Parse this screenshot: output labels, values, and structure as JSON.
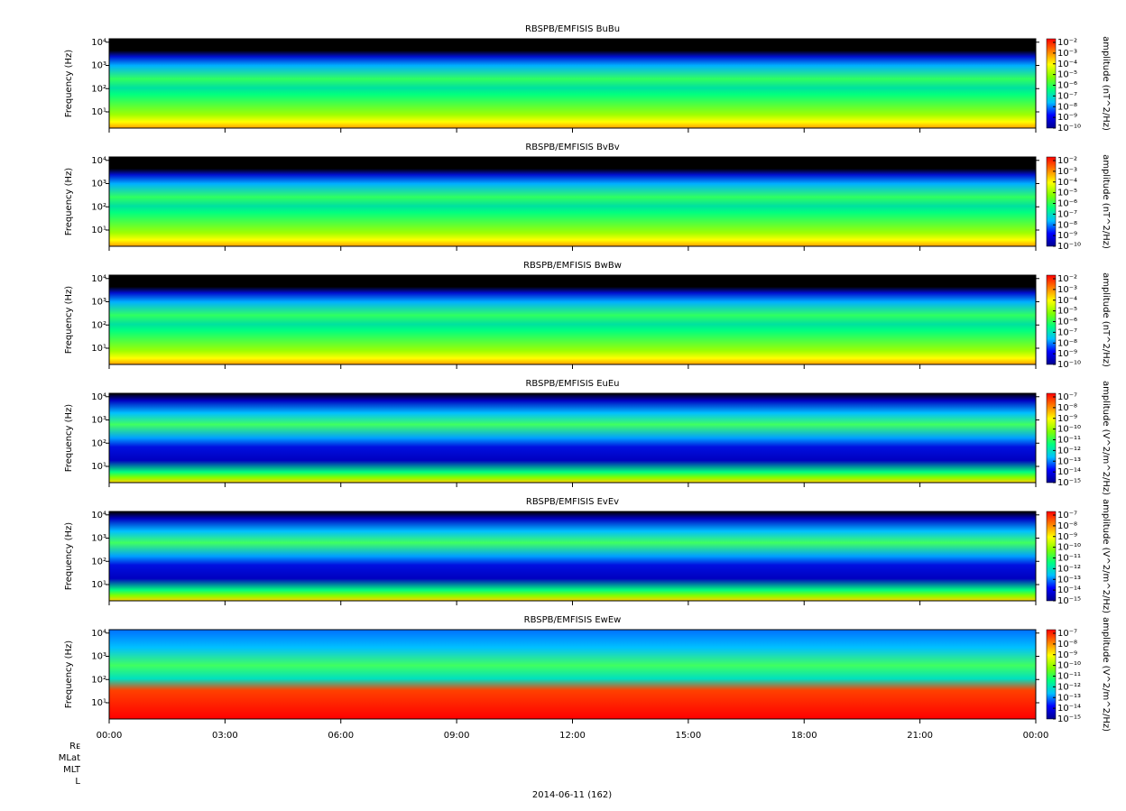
{
  "chart_data": [
    {
      "type": "spectrogram",
      "title": "RBSPB/EMFISIS  BuBu",
      "ylabel": "Frequency (Hz)",
      "log_y": true,
      "ylim": [
        2,
        14000
      ],
      "yticks": [
        {
          "value": 10,
          "label": "10¹"
        },
        {
          "value": 100,
          "label": "10²"
        },
        {
          "value": 1000,
          "label": "10³"
        },
        {
          "value": 10000,
          "label": "10⁴"
        }
      ],
      "zlabel": "amplitude (nT^2/Hz)",
      "zlim": [
        1e-10,
        0.01
      ],
      "zticks": [
        {
          "value": 0.01,
          "label": "10⁻²"
        },
        {
          "value": 0.001,
          "label": "10⁻³"
        },
        {
          "value": 0.0001,
          "label": "10⁻⁴"
        },
        {
          "value": 1e-05,
          "label": "10⁻⁵"
        },
        {
          "value": 1e-06,
          "label": "10⁻⁶"
        },
        {
          "value": 1e-07,
          "label": "10⁻⁷"
        },
        {
          "value": 1e-08,
          "label": "10⁻⁸"
        },
        {
          "value": 1e-09,
          "label": "10⁻⁹"
        },
        {
          "value": 1e-10,
          "label": "10⁻¹⁰"
        }
      ]
    },
    {
      "type": "spectrogram",
      "title": "RBSPB/EMFISIS  BvBv",
      "ylabel": "Frequency (Hz)",
      "log_y": true,
      "ylim": [
        2,
        14000
      ],
      "yticks": [
        {
          "value": 10,
          "label": "10¹"
        },
        {
          "value": 100,
          "label": "10²"
        },
        {
          "value": 1000,
          "label": "10³"
        },
        {
          "value": 10000,
          "label": "10⁴"
        }
      ],
      "zlabel": "amplitude (nT^2/Hz)",
      "zlim": [
        1e-10,
        0.01
      ],
      "zticks": [
        {
          "value": 0.01,
          "label": "10⁻²"
        },
        {
          "value": 0.001,
          "label": "10⁻³"
        },
        {
          "value": 0.0001,
          "label": "10⁻⁴"
        },
        {
          "value": 1e-05,
          "label": "10⁻⁵"
        },
        {
          "value": 1e-06,
          "label": "10⁻⁶"
        },
        {
          "value": 1e-07,
          "label": "10⁻⁷"
        },
        {
          "value": 1e-08,
          "label": "10⁻⁸"
        },
        {
          "value": 1e-09,
          "label": "10⁻⁹"
        },
        {
          "value": 1e-10,
          "label": "10⁻¹⁰"
        }
      ]
    },
    {
      "type": "spectrogram",
      "title": "RBSPB/EMFISIS  BwBw",
      "ylabel": "Frequency (Hz)",
      "log_y": true,
      "ylim": [
        2,
        14000
      ],
      "yticks": [
        {
          "value": 10,
          "label": "10¹"
        },
        {
          "value": 100,
          "label": "10²"
        },
        {
          "value": 1000,
          "label": "10³"
        },
        {
          "value": 10000,
          "label": "10⁴"
        }
      ],
      "zlabel": "amplitude (nT^2/Hz)",
      "zlim": [
        1e-10,
        0.01
      ],
      "zticks": [
        {
          "value": 0.01,
          "label": "10⁻²"
        },
        {
          "value": 0.001,
          "label": "10⁻³"
        },
        {
          "value": 0.0001,
          "label": "10⁻⁴"
        },
        {
          "value": 1e-05,
          "label": "10⁻⁵"
        },
        {
          "value": 1e-06,
          "label": "10⁻⁶"
        },
        {
          "value": 1e-07,
          "label": "10⁻⁷"
        },
        {
          "value": 1e-08,
          "label": "10⁻⁸"
        },
        {
          "value": 1e-09,
          "label": "10⁻⁹"
        },
        {
          "value": 1e-10,
          "label": "10⁻¹⁰"
        }
      ]
    },
    {
      "type": "spectrogram",
      "title": "RBSPB/EMFISIS  EuEu",
      "ylabel": "Frequency (Hz)",
      "log_y": true,
      "ylim": [
        2,
        14000
      ],
      "yticks": [
        {
          "value": 10,
          "label": "10¹"
        },
        {
          "value": 100,
          "label": "10²"
        },
        {
          "value": 1000,
          "label": "10³"
        },
        {
          "value": 10000,
          "label": "10⁴"
        }
      ],
      "zlabel": "amplitude (V^2/m^2/Hz)",
      "zlim": [
        1e-15,
        1e-07
      ],
      "zticks": [
        {
          "value": 1e-07,
          "label": "10⁻⁷"
        },
        {
          "value": 1e-08,
          "label": "10⁻⁸"
        },
        {
          "value": 1e-09,
          "label": "10⁻⁹"
        },
        {
          "value": 1e-10,
          "label": "10⁻¹⁰"
        },
        {
          "value": 1e-11,
          "label": "10⁻¹¹"
        },
        {
          "value": 1e-12,
          "label": "10⁻¹²"
        },
        {
          "value": 1e-13,
          "label": "10⁻¹³"
        },
        {
          "value": 1e-14,
          "label": "10⁻¹⁴"
        },
        {
          "value": 1e-15,
          "label": "10⁻¹⁵"
        }
      ]
    },
    {
      "type": "spectrogram",
      "title": "RBSPB/EMFISIS  EvEv",
      "ylabel": "Frequency (Hz)",
      "log_y": true,
      "ylim": [
        2,
        14000
      ],
      "yticks": [
        {
          "value": 10,
          "label": "10¹"
        },
        {
          "value": 100,
          "label": "10²"
        },
        {
          "value": 1000,
          "label": "10³"
        },
        {
          "value": 10000,
          "label": "10⁴"
        }
      ],
      "zlabel": "amplitude (V^2/m^2/Hz)",
      "zlim": [
        1e-15,
        1e-07
      ],
      "zticks": [
        {
          "value": 1e-07,
          "label": "10⁻⁷"
        },
        {
          "value": 1e-08,
          "label": "10⁻⁸"
        },
        {
          "value": 1e-09,
          "label": "10⁻⁹"
        },
        {
          "value": 1e-10,
          "label": "10⁻¹⁰"
        },
        {
          "value": 1e-11,
          "label": "10⁻¹¹"
        },
        {
          "value": 1e-12,
          "label": "10⁻¹²"
        },
        {
          "value": 1e-13,
          "label": "10⁻¹³"
        },
        {
          "value": 1e-14,
          "label": "10⁻¹⁴"
        },
        {
          "value": 1e-15,
          "label": "10⁻¹⁵"
        }
      ]
    },
    {
      "type": "spectrogram",
      "title": "RBSPB/EMFISIS  EwEw",
      "ylabel": "Frequency (Hz)",
      "log_y": true,
      "ylim": [
        2,
        14000
      ],
      "yticks": [
        {
          "value": 10,
          "label": "10¹"
        },
        {
          "value": 100,
          "label": "10²"
        },
        {
          "value": 1000,
          "label": "10³"
        },
        {
          "value": 10000,
          "label": "10⁴"
        }
      ],
      "zlabel": "amplitude (V^2/m^2/Hz)",
      "zlim": [
        1e-15,
        1e-07
      ],
      "zticks": [
        {
          "value": 1e-07,
          "label": "10⁻⁷"
        },
        {
          "value": 1e-08,
          "label": "10⁻⁸"
        },
        {
          "value": 1e-09,
          "label": "10⁻⁹"
        },
        {
          "value": 1e-10,
          "label": "10⁻¹⁰"
        },
        {
          "value": 1e-11,
          "label": "10⁻¹¹"
        },
        {
          "value": 1e-12,
          "label": "10⁻¹²"
        },
        {
          "value": 1e-13,
          "label": "10⁻¹³"
        },
        {
          "value": 1e-14,
          "label": "10⁻¹⁴"
        },
        {
          "value": 1e-15,
          "label": "10⁻¹⁵"
        }
      ]
    }
  ],
  "x_axis": {
    "xlim": [
      0,
      24
    ],
    "xticks": [
      {
        "value": 0,
        "label": "00:00"
      },
      {
        "value": 3,
        "label": "03:00"
      },
      {
        "value": 6,
        "label": "06:00"
      },
      {
        "value": 9,
        "label": "09:00"
      },
      {
        "value": 12,
        "label": "12:00"
      },
      {
        "value": 15,
        "label": "15:00"
      },
      {
        "value": 18,
        "label": "18:00"
      },
      {
        "value": 21,
        "label": "21:00"
      },
      {
        "value": 24,
        "label": "00:00"
      }
    ],
    "xlabel": "2014-06-11 (162)",
    "ephemeris_labels": [
      "Rᴇ",
      "MLat",
      "MLT",
      "L"
    ]
  },
  "colormap": [
    "#000090",
    "#0000ff",
    "#00c0ff",
    "#00ff80",
    "#80ff00",
    "#ffff00",
    "#ff8000",
    "#ff0000"
  ]
}
